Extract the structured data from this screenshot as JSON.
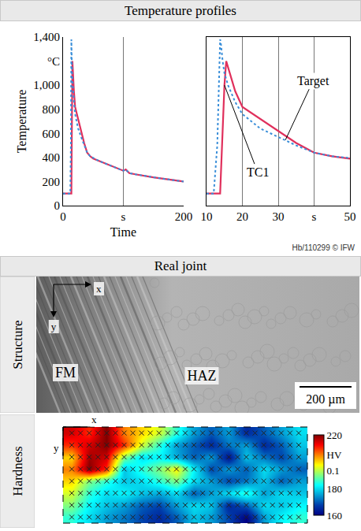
{
  "title": "Temperature profiles",
  "credit": "Hb/110299 © IFW",
  "section": "Real joint",
  "rows": [
    "Structure",
    "Hardness"
  ],
  "structure": {
    "regions": [
      "FM",
      "HAZ"
    ],
    "scale_bar": "200 µm",
    "x_label": "x",
    "y_label": "y"
  },
  "chart_data": [
    {
      "type": "line",
      "x_label": "Time",
      "y_label": "Temperature",
      "x": [
        0,
        5,
        10,
        12,
        13,
        13.8,
        14,
        14.5,
        15,
        15.5,
        16,
        18,
        20,
        25,
        30,
        35,
        40,
        45,
        50,
        60,
        80,
        100,
        104,
        110,
        120,
        150,
        200
      ],
      "series": [
        {
          "name": "TC1",
          "color": "#e0305c",
          "line_style": "solid",
          "values": [
            100,
            100,
            100,
            100,
            100,
            100,
            250,
            600,
            1000,
            1200,
            1150,
            950,
            820,
            720,
            620,
            520,
            440,
            410,
            390,
            370,
            330,
            290,
            300,
            270,
            260,
            235,
            200
          ]
        },
        {
          "name": "Target",
          "color": "#3b8fd9",
          "line_style": "dotted",
          "values": [
            100,
            100,
            100,
            100,
            500,
            1380,
            1350,
            1200,
            1100,
            1050,
            1000,
            860,
            760,
            640,
            570,
            500,
            440,
            410,
            395,
            370,
            330,
            290,
            300,
            270,
            260,
            235,
            200
          ]
        }
      ],
      "xlim": [
        0,
        200
      ],
      "xticks": [
        0,
        {
          "value": 100,
          "label": "s"
        },
        200
      ],
      "ylim": [
        0,
        1400
      ],
      "yticks": [
        0,
        200,
        400,
        600,
        800,
        {
          "value": 1000,
          "label": "1,000"
        },
        {
          "value": 1200,
          "label": "°C"
        },
        {
          "value": 1400,
          "label": "1,400"
        }
      ],
      "grid": true
    },
    {
      "type": "line",
      "x": [
        10,
        12,
        13,
        13.8,
        14,
        14.5,
        15,
        15.5,
        16,
        18,
        20,
        25,
        30,
        35,
        40,
        45,
        50
      ],
      "series": [
        {
          "name": "TC1",
          "color": "#e0305c",
          "line_style": "solid",
          "values": [
            100,
            100,
            100,
            100,
            250,
            600,
            1000,
            1200,
            1150,
            950,
            820,
            720,
            620,
            520,
            440,
            410,
            390
          ]
        },
        {
          "name": "Target",
          "color": "#3b8fd9",
          "line_style": "dotted",
          "values": [
            100,
            100,
            500,
            1380,
            1350,
            1200,
            1100,
            1050,
            1000,
            860,
            760,
            640,
            570,
            500,
            440,
            410,
            395
          ]
        }
      ],
      "annotations": [
        {
          "text": "Target",
          "x": 32,
          "y": 545
        },
        {
          "text": "TC1",
          "x": 15,
          "y": 1000
        }
      ],
      "xlim": [
        10,
        50
      ],
      "xticks": [
        10,
        20,
        30,
        {
          "value": 40,
          "label": "s"
        },
        50
      ],
      "ylim": [
        0,
        1400
      ],
      "yticks": [
        0,
        200,
        400,
        600,
        800,
        1000,
        1200,
        1400
      ],
      "grid": true,
      "tick_labels": "x"
    },
    {
      "type": "heatmap",
      "x_label": "x",
      "y_label": "y",
      "cells": [
        [
          215,
          210,
          220,
          205,
          200,
          195,
          185,
          175,
          170,
          175,
          165,
          170,
          175,
          180
        ],
        [
          210,
          215,
          220,
          210,
          195,
          185,
          175,
          170,
          165,
          172,
          175,
          165,
          170,
          178
        ],
        [
          200,
          218,
          215,
          190,
          180,
          182,
          176,
          170,
          175,
          162,
          178,
          172,
          168,
          175
        ],
        [
          205,
          220,
          210,
          178,
          185,
          190,
          198,
          182,
          168,
          175,
          170,
          180,
          175,
          170
        ],
        [
          200,
          190,
          185,
          178,
          180,
          185,
          190,
          180,
          175,
          168,
          172,
          178,
          170,
          175
        ],
        [
          195,
          185,
          180,
          182,
          178,
          176,
          180,
          170,
          175,
          180,
          185,
          175,
          180,
          178
        ],
        [
          190,
          182,
          178,
          175,
          170,
          168,
          175,
          180,
          178,
          165,
          170,
          180,
          178,
          182
        ],
        [
          185,
          180,
          175,
          172,
          168,
          165,
          170,
          178,
          175,
          168,
          160,
          175,
          182,
          185
        ]
      ],
      "color_range": [
        160,
        220
      ],
      "color_ticks": [
        220,
        {
          "value": 205,
          "label": "HV"
        },
        {
          "value": 193,
          "label": "0.1"
        },
        180,
        160
      ],
      "tick_labels": false
    }
  ]
}
